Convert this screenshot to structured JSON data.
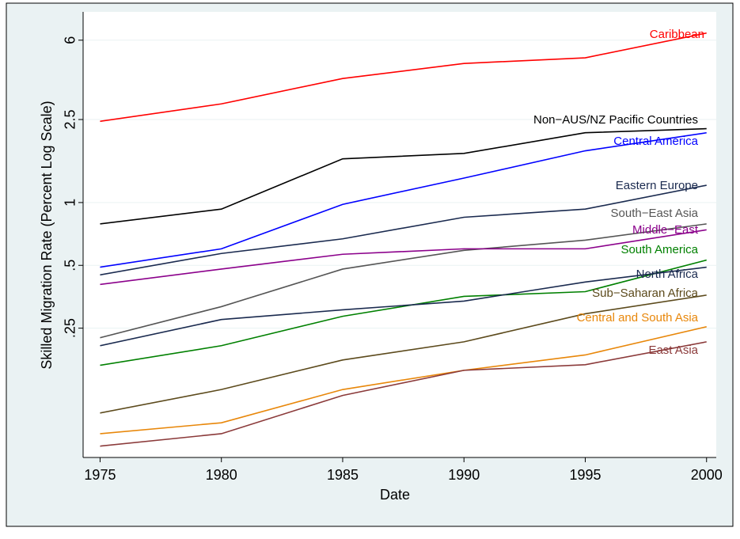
{
  "chart_data": {
    "type": "line",
    "log_y": true,
    "grid": true,
    "xlabel": "Date",
    "ylabel": "Skilled Migration Rate (Percent Log Scale)",
    "x": [
      1975,
      1980,
      1985,
      1990,
      1995,
      2000
    ],
    "xlim": [
      1974.3,
      2000.4
    ],
    "xticks": [
      1975,
      1980,
      1985,
      1990,
      1995,
      2000
    ],
    "ylim": [
      0.06,
      8.2
    ],
    "yticks": [
      {
        "value": 0.25,
        "label": ".25"
      },
      {
        "value": 0.5,
        "label": ".5"
      },
      1,
      2.5,
      6
    ],
    "series": [
      {
        "name": "Caribbean",
        "color": "#ff0000",
        "values": [
          2.45,
          2.97,
          3.93,
          4.64,
          4.94,
          6.49
        ]
      },
      {
        "name": "Non−AUS/NZ Pacific Countries",
        "color": "#000000",
        "values": [
          0.79,
          0.93,
          1.62,
          1.72,
          2.16,
          2.26
        ]
      },
      {
        "name": "Central America",
        "color": "#0000ff",
        "values": [
          0.49,
          0.6,
          0.98,
          1.31,
          1.77,
          2.16
        ]
      },
      {
        "name": "Eastern Europe",
        "color": "#1a2a4f",
        "values": [
          0.45,
          0.57,
          0.67,
          0.85,
          0.93,
          1.21
        ]
      },
      {
        "name": "South−East Asia",
        "color": "#555555",
        "values": [
          0.225,
          0.317,
          0.48,
          0.59,
          0.66,
          0.79
        ]
      },
      {
        "name": "Middle−East",
        "color": "#8b008b",
        "values": [
          0.405,
          0.48,
          0.565,
          0.6,
          0.6,
          0.74
        ]
      },
      {
        "name": "South America",
        "color": "#008000",
        "values": [
          0.166,
          0.206,
          0.285,
          0.355,
          0.374,
          0.53
        ]
      },
      {
        "name": "North Africa",
        "color": "#1a2a4f",
        "values": [
          0.206,
          0.275,
          0.306,
          0.337,
          0.416,
          0.49
        ]
      },
      {
        "name": "Sub−Saharan Africa",
        "color": "#5c4a1c",
        "values": [
          0.098,
          0.127,
          0.176,
          0.215,
          0.293,
          0.36
        ]
      },
      {
        "name": "Central and South Asia",
        "color": "#e8870a",
        "values": [
          0.078,
          0.088,
          0.127,
          0.157,
          0.186,
          0.254
        ]
      },
      {
        "name": "East Asia",
        "color": "#8b3a3a",
        "values": [
          0.068,
          0.078,
          0.119,
          0.157,
          0.167,
          0.215
        ]
      }
    ]
  }
}
